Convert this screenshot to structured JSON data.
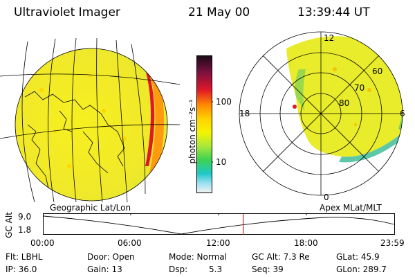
{
  "header": {
    "title": "Ultraviolet Imager",
    "date": "21 May 00",
    "time": "13:39:44 UT"
  },
  "colorbar": {
    "unit_label": "photon cm⁻²s⁻¹",
    "ticks": [
      "100",
      "10"
    ],
    "colors": [
      "#1a0b16",
      "#7a1040",
      "#e01828",
      "#ff8a00",
      "#ffd200",
      "#f4f400",
      "#a8e83a",
      "#3cd250",
      "#1fc8c8",
      "#9ce0f0",
      "#f2f2f2"
    ]
  },
  "plots": {
    "left_caption": "Geographic Lat/Lon",
    "right_caption": "Apex MLat/MLT",
    "polar_labels": {
      "mlt_12": "12",
      "mlt_18": "18",
      "mlt_6": "6",
      "mlt_0": "0",
      "lat_60": "60",
      "lat_70": "70",
      "lat_80": "80"
    }
  },
  "timeline": {
    "ylabel": "GC Alt",
    "ymax": "9.0",
    "ymin": "1.8",
    "xticks": [
      "00:00",
      "06:00",
      "12:00",
      "18:00",
      "23:59"
    ],
    "current_time_fraction": 0.5693,
    "colors": {
      "marker": "#e01818",
      "curve": "#000000"
    }
  },
  "info": {
    "flt": "Flt: LBHL",
    "ip": "IP: 36.0",
    "door": "Door: Open",
    "gain": "Gain: 13",
    "mode": "Mode: Normal",
    "dsp": "Dsp:",
    "dsp_val": "5.3",
    "gcalt": "GC Alt: 7.3 Re",
    "seq": "Seq: 39",
    "glat": "GLat:  45.9",
    "glon": "GLon: 289.7"
  }
}
